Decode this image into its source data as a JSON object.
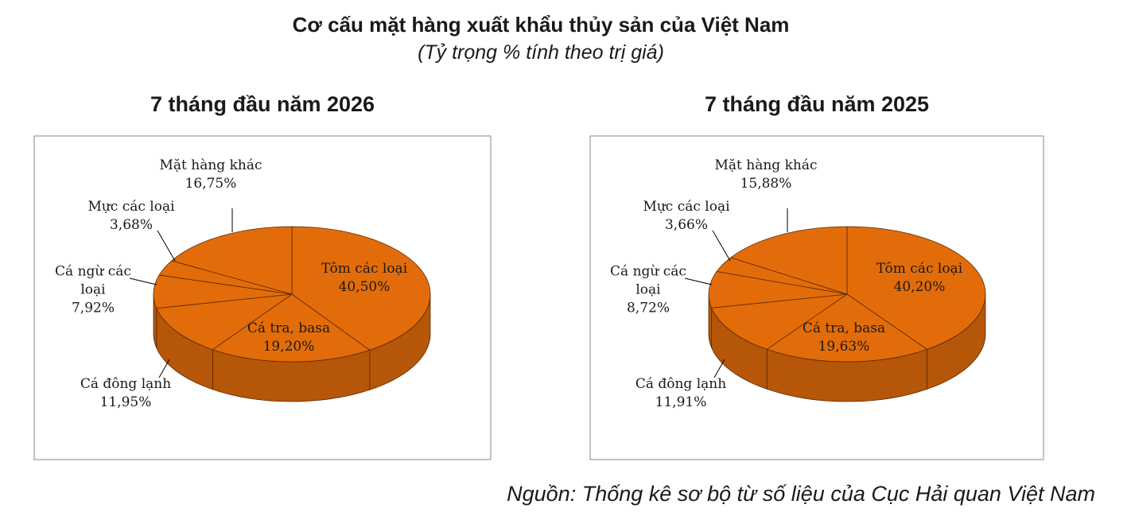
{
  "title": "Cơ cấu mặt hàng xuất khẩu thủy sản của Việt Nam",
  "subtitle": "(Tỷ trọng % tính theo trị giá)",
  "source": "Nguồn: Thống kê sơ bộ từ số liệu của Cục Hải quan Việt Nam",
  "chart_data": [
    {
      "type": "pie",
      "title": "7 tháng đầu năm 2026",
      "categories": [
        "Tôm các loại",
        "Cá tra, basa",
        "Cá đông lạnh",
        "Cá ngừ các loại",
        "Mực các loại",
        "Mặt hàng khác"
      ],
      "values": [
        40.5,
        19.2,
        11.95,
        7.92,
        3.68,
        16.75
      ],
      "value_labels": [
        "40,50%",
        "19,20%",
        "11,95%",
        "7,92%",
        "3,68%",
        "16,75%"
      ],
      "color": "#e36c0a"
    },
    {
      "type": "pie",
      "title": "7 tháng đầu năm 2025",
      "categories": [
        "Tôm các loại",
        "Cá tra, basa",
        "Cá đông lạnh",
        "Cá ngừ các loại",
        "Mực các loại",
        "Mặt hàng khác"
      ],
      "values": [
        40.2,
        19.63,
        11.91,
        8.72,
        3.66,
        15.88
      ],
      "value_labels": [
        "40,20%",
        "19,63%",
        "11,91%",
        "8,72%",
        "3,66%",
        "15,88%"
      ],
      "color": "#e36c0a"
    }
  ]
}
